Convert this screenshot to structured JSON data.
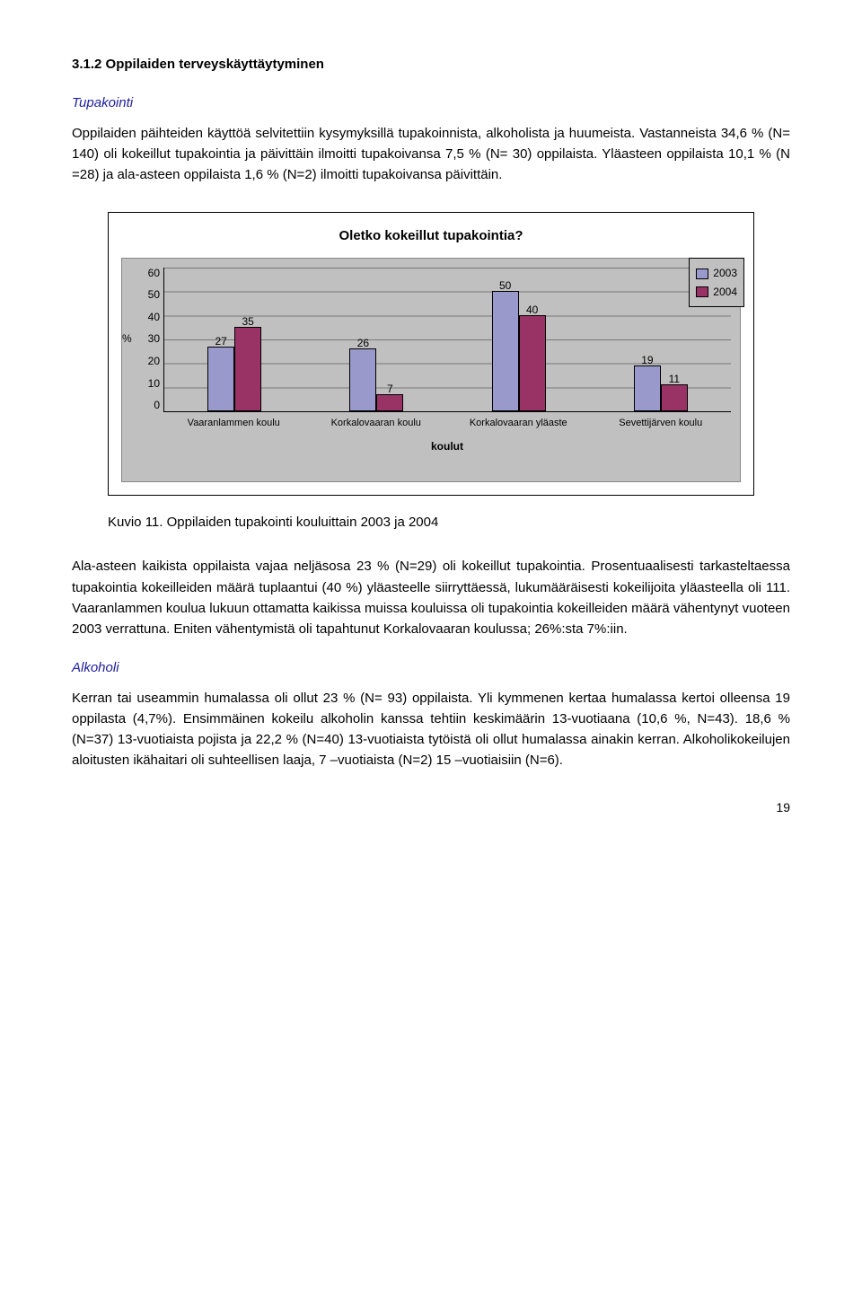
{
  "heading": "3.1.2  Oppilaiden terveyskäyttäytyminen",
  "sections": {
    "tupakointi_title": "Tupakointi",
    "tupakointi_para1": "Oppilaiden päihteiden käyttöä selvitettiin kysymyksillä tupakoinnista, alkoholista ja huumeista. Vastanneista 34,6 %  (N= 140) oli kokeillut tupakointia ja päivittäin ilmoitti tupakoivansa 7,5 % (N= 30) oppilaista. Yläasteen oppilaista 10,1 % (N =28) ja ala-asteen oppilaista 1,6 % (N=2) ilmoitti tupakoivansa päivittäin.",
    "tupakointi_para2": "Ala-asteen kaikista oppilaista vajaa neljäsosa 23 % (N=29) oli kokeillut tupakointia. Prosentuaalisesti tarkasteltaessa tupakointia kokeilleiden määrä tuplaantui (40 %) yläasteelle siirryttäessä, lukumääräisesti kokeilijoita yläasteella oli 111. Vaaranlammen koulua lukuun ottamatta kaikissa muissa kouluissa oli tupakointia kokeilleiden määrä vähentynyt vuoteen 2003 verrattuna.  Eniten vähentymistä oli tapahtunut Korkalovaaran koulussa; 26%:sta 7%:iin.",
    "alkoholi_title": "Alkoholi",
    "alkoholi_para1": "Kerran tai useammin humalassa oli ollut 23 % (N= 93) oppilaista. Yli kymmenen kertaa humalassa kertoi olleensa 19 oppilasta (4,7%). Ensimmäinen kokeilu alkoholin kanssa tehtiin keskimäärin 13-vuotiaana (10,6 %, N=43). 18,6 % (N=37) 13-vuotiaista pojista ja 22,2 % (N=40) 13-vuotiaista tytöistä oli ollut humalassa ainakin kerran. Alkoholikokeilujen aloitusten ikähaitari oli suhteellisen laaja,  7 –vuotiaista (N=2)  15 –vuotiaisiin (N=6)."
  },
  "chart": {
    "type": "bar",
    "title": "Oletko kokeillut tupakointia?",
    "categories": [
      "Vaaranlammen koulu",
      "Korkalovaaran koulu",
      "Korkalovaaran yläaste",
      "Sevettijärven koulu"
    ],
    "x_axis_title": "koulut",
    "series": [
      {
        "name": "2003",
        "color": "#9999cc",
        "values": [
          27,
          26,
          50,
          19
        ]
      },
      {
        "name": "2004",
        "color": "#993366",
        "values": [
          35,
          7,
          40,
          11
        ]
      }
    ],
    "y_label": "%",
    "y_max": 60,
    "y_tick_step": 10,
    "y_ticks": [
      "60",
      "50",
      "40",
      "30",
      "20",
      "10",
      "0"
    ],
    "background_color": "#c0c0c0",
    "grid_color": "#777777",
    "border_color": "#888888",
    "bar_border": "#000000",
    "label_fontsize": 12
  },
  "caption": "Kuvio 11. Oppilaiden tupakointi kouluittain 2003 ja 2004",
  "page_number": "19"
}
